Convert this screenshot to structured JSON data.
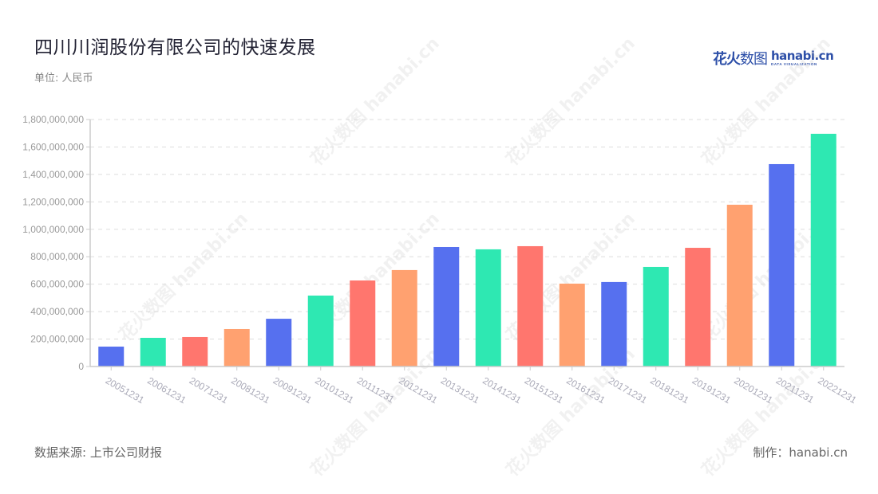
{
  "header": {
    "title": "四川川润股份有限公司的快速发展",
    "unit": "单位: 人民币"
  },
  "logo": {
    "cn_bold": "花火",
    "cn_thin": "数图",
    "en_main": "hanabi.cn",
    "en_sub": "DATA VISUALIZATION"
  },
  "footer": {
    "source": "数据来源: 上市公司财报",
    "credit": "制作：hanabi.cn"
  },
  "watermark_text": "花火数图 hanabi.cn",
  "colors": {
    "blue": "#5670ef",
    "green": "#2ee8b2",
    "red": "#ff766e",
    "orange": "#ffa170",
    "axis": "#cccccc",
    "grid": "#dddddd",
    "tick_label": "#999999",
    "x_label": "#aaaab8"
  },
  "chart_data": {
    "type": "bar",
    "title": "四川川润股份有限公司的快速发展",
    "subtitle": "单位: 人民币",
    "xlabel": "",
    "ylabel": "",
    "ylim": [
      0,
      1800000000
    ],
    "yticks": [
      0,
      200000000,
      400000000,
      600000000,
      800000000,
      1000000000,
      1200000000,
      1400000000,
      1600000000,
      1800000000
    ],
    "ytick_labels": [
      "0",
      "200,000,000",
      "400,000,000",
      "600,000,000",
      "800,000,000",
      "1,000,000,000",
      "1,200,000,000",
      "1,400,000,000",
      "1,600,000,000",
      "1,800,000,000"
    ],
    "grid": true,
    "legend": "none",
    "categories": [
      "20051231",
      "20061231",
      "20071231",
      "20081231",
      "20091231",
      "20101231",
      "20111231",
      "20121231",
      "20131231",
      "20141231",
      "20151231",
      "20161231",
      "20171231",
      "20181231",
      "20191231",
      "20201231",
      "20211231",
      "20221231"
    ],
    "values": [
      145000000,
      209000000,
      215000000,
      273000000,
      348000000,
      517000000,
      627000000,
      703000000,
      871000000,
      854000000,
      877000000,
      604000000,
      616000000,
      726000000,
      865000000,
      1179000000,
      1475000000,
      1696000000
    ],
    "bar_colors": [
      "#5670ef",
      "#2ee8b2",
      "#ff766e",
      "#ffa170",
      "#5670ef",
      "#2ee8b2",
      "#ff766e",
      "#ffa170",
      "#5670ef",
      "#2ee8b2",
      "#ff766e",
      "#ffa170",
      "#5670ef",
      "#2ee8b2",
      "#ff766e",
      "#ffa170",
      "#5670ef",
      "#2ee8b2"
    ],
    "source": "数据来源: 上市公司财报"
  }
}
